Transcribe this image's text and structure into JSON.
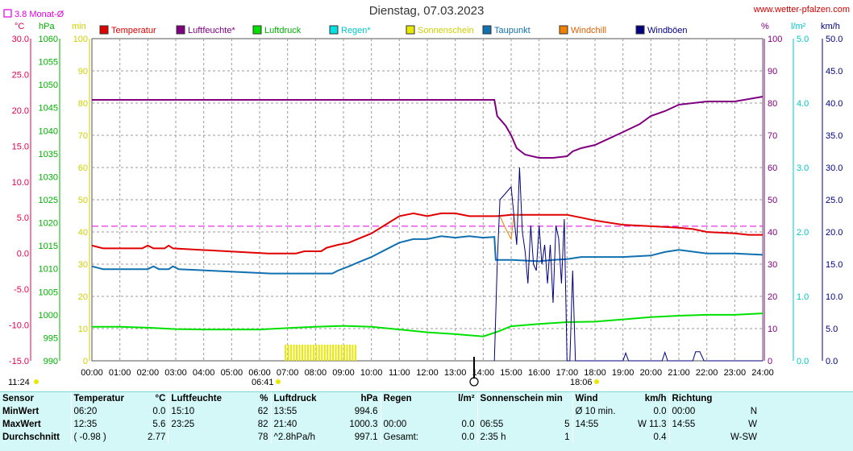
{
  "title": "Dienstag, 07.03.2023",
  "site": "www.wetter-pfalzen.com",
  "monthly_avg_label": "3.8 Monat-Ø",
  "axis_units": {
    "temp": "°C",
    "pressure": "hPa",
    "sunshine": "min",
    "humidity": "%",
    "rain": "l/m²",
    "wind": "km/h"
  },
  "sunrise_label": "06:41",
  "sunset_label": "18:06",
  "update_time": "11:24",
  "colors": {
    "temp": "#e00000",
    "humidity": "#800080",
    "pressure": "#00e000",
    "rain": "#00e0e0",
    "sunshine": "#e8e800",
    "dewpoint": "#1070b0",
    "windchill": "#f08000",
    "gusts": "#000080",
    "monthly_avg": "#e000e0",
    "temp_axis": "#e00050",
    "stats_bg": "#d4f7f7"
  },
  "chart_data": {
    "type": "line",
    "x_ticks": [
      "00:00",
      "01:00",
      "02:00",
      "03:00",
      "04:00",
      "05:00",
      "06:00",
      "07:00",
      "08:00",
      "09:00",
      "10:00",
      "11:00",
      "12:00",
      "13:00",
      "14:00",
      "15:00",
      "16:00",
      "17:00",
      "18:00",
      "19:00",
      "20:00",
      "21:00",
      "22:00",
      "23:00",
      "24:00"
    ],
    "axes": {
      "temp": {
        "range": [
          -15,
          30
        ],
        "ticks": [
          "30.0",
          "25.0",
          "20.0",
          "15.0",
          "10.0",
          "5.0",
          "0.0",
          "-5.0",
          "-10.0",
          "-15.0"
        ]
      },
      "pressure": {
        "range": [
          990,
          1060
        ],
        "ticks": [
          "1060",
          "1055",
          "1050",
          "1045",
          "1040",
          "1035",
          "1030",
          "1025",
          "1020",
          "1015",
          "1010",
          "1005",
          "1000",
          "995",
          "990"
        ]
      },
      "sunshine": {
        "range": [
          0,
          100
        ],
        "ticks": [
          "100",
          "90",
          "80",
          "70",
          "60",
          "50",
          "40",
          "30",
          "20",
          "10",
          "0"
        ]
      },
      "humidity": {
        "range": [
          0,
          100
        ],
        "ticks": [
          "100",
          "90",
          "80",
          "70",
          "60",
          "50",
          "40",
          "30",
          "20",
          "10",
          "0"
        ]
      },
      "rain": {
        "range": [
          0,
          5
        ],
        "ticks": [
          "5.0",
          "4.0",
          "3.0",
          "2.0",
          "1.0",
          "0.0"
        ]
      },
      "wind": {
        "range": [
          0,
          50
        ],
        "ticks": [
          "50.0",
          "45.0",
          "40.0",
          "35.0",
          "30.0",
          "25.0",
          "20.0",
          "15.0",
          "10.0",
          "5.0",
          "0.0"
        ]
      }
    },
    "legend": [
      "Temperatur",
      "Luftfeuchte*",
      "Luftdruck",
      "Regen*",
      "Sonnenschein",
      "Taupunkt",
      "Windchill",
      "Windböen"
    ],
    "monthly_avg_temp": 3.8,
    "series": [
      {
        "name": "Temperatur",
        "axis": "temp",
        "points": [
          [
            0,
            1.1
          ],
          [
            0.4,
            0.7
          ],
          [
            1.8,
            0.7
          ],
          [
            2,
            1.1
          ],
          [
            2.2,
            0.7
          ],
          [
            2.6,
            0.7
          ],
          [
            2.75,
            1.1
          ],
          [
            2.9,
            0.7
          ],
          [
            6.3,
            0.0
          ],
          [
            7.3,
            0.0
          ],
          [
            7.6,
            0.3
          ],
          [
            8.2,
            0.3
          ],
          [
            8.4,
            0.8
          ],
          [
            8.8,
            1.2
          ],
          [
            9.2,
            1.5
          ],
          [
            9.5,
            2.0
          ],
          [
            10,
            2.8
          ],
          [
            10.5,
            4.0
          ],
          [
            11,
            5.2
          ],
          [
            11.5,
            5.6
          ],
          [
            12,
            5.2
          ],
          [
            12.5,
            5.6
          ],
          [
            13,
            5.6
          ],
          [
            13.5,
            5.2
          ],
          [
            14,
            5.2
          ],
          [
            14.5,
            5.2
          ],
          [
            15,
            5.4
          ],
          [
            16,
            5.4
          ],
          [
            17,
            5.4
          ],
          [
            17.5,
            5.0
          ],
          [
            18,
            4.6
          ],
          [
            19,
            4.0
          ],
          [
            20,
            3.8
          ],
          [
            21,
            3.6
          ],
          [
            21.5,
            3.4
          ],
          [
            22,
            3.0
          ],
          [
            23,
            2.8
          ],
          [
            23.5,
            2.6
          ],
          [
            24,
            2.6
          ]
        ]
      },
      {
        "name": "Luftfeuchte*",
        "axis": "humidity",
        "points": [
          [
            0,
            81
          ],
          [
            14.4,
            81
          ],
          [
            14.5,
            76
          ],
          [
            14.8,
            73
          ],
          [
            15.0,
            70
          ],
          [
            15.2,
            66
          ],
          [
            15.5,
            64
          ],
          [
            16,
            63
          ],
          [
            16.5,
            63
          ],
          [
            17,
            63.5
          ],
          [
            17.2,
            65
          ],
          [
            17.5,
            66
          ],
          [
            18,
            67
          ],
          [
            19,
            71
          ],
          [
            19.6,
            73.5
          ],
          [
            20,
            76
          ],
          [
            20.5,
            77.5
          ],
          [
            21,
            79.5
          ],
          [
            22,
            80.5
          ],
          [
            23,
            80.5
          ],
          [
            24,
            82
          ]
        ]
      },
      {
        "name": "Luftdruck",
        "axis": "pressure",
        "points": [
          [
            0,
            997.4
          ],
          [
            1,
            997.4
          ],
          [
            2,
            997.2
          ],
          [
            3,
            996.9
          ],
          [
            4,
            996.8
          ],
          [
            5,
            996.8
          ],
          [
            6,
            996.8
          ],
          [
            7,
            997.1
          ],
          [
            8,
            997.4
          ],
          [
            9,
            997.6
          ],
          [
            10,
            997.4
          ],
          [
            11,
            996.8
          ],
          [
            12,
            996.2
          ],
          [
            13,
            995.8
          ],
          [
            14,
            995.3
          ],
          [
            14.5,
            996.3
          ],
          [
            15,
            997.5
          ],
          [
            16,
            998.0
          ],
          [
            17,
            998.4
          ],
          [
            18,
            998.5
          ],
          [
            19,
            999.0
          ],
          [
            20,
            999.5
          ],
          [
            21,
            999.8
          ],
          [
            22,
            1000.0
          ],
          [
            23,
            1000.0
          ],
          [
            24,
            1000.3
          ]
        ]
      },
      {
        "name": "Taupunkt",
        "axis": "temp",
        "points": [
          [
            0,
            -1.8
          ],
          [
            0.4,
            -2.2
          ],
          [
            2,
            -2.2
          ],
          [
            2.2,
            -1.8
          ],
          [
            2.4,
            -2.2
          ],
          [
            2.75,
            -2.2
          ],
          [
            2.9,
            -1.8
          ],
          [
            3.1,
            -2.2
          ],
          [
            6.4,
            -2.8
          ],
          [
            8.6,
            -2.8
          ],
          [
            8.8,
            -2.4
          ],
          [
            9.2,
            -1.8
          ],
          [
            9.5,
            -1.3
          ],
          [
            10,
            -0.5
          ],
          [
            10.5,
            0.5
          ],
          [
            11,
            1.5
          ],
          [
            11.5,
            2.0
          ],
          [
            12,
            2.0
          ],
          [
            12.5,
            2.4
          ],
          [
            13,
            2.2
          ],
          [
            13.5,
            2.4
          ],
          [
            14,
            2.2
          ],
          [
            14.4,
            2.3
          ],
          [
            14.45,
            -0.9
          ],
          [
            15,
            -0.9
          ],
          [
            16,
            -1.1
          ],
          [
            16.5,
            -0.9
          ],
          [
            17,
            -0.8
          ],
          [
            17.5,
            -0.5
          ],
          [
            18,
            -0.5
          ],
          [
            19,
            -0.5
          ],
          [
            20,
            -0.3
          ],
          [
            20.5,
            0.2
          ],
          [
            21,
            0.5
          ],
          [
            22,
            0.0
          ],
          [
            23,
            0.0
          ],
          [
            24,
            -0.2
          ]
        ]
      }
    ],
    "sunshine_minutes": [
      [
        6.9,
        5
      ],
      [
        7.0,
        5
      ],
      [
        7.1,
        5
      ],
      [
        7.2,
        5
      ],
      [
        7.3,
        5
      ],
      [
        7.4,
        5
      ],
      [
        7.5,
        5
      ],
      [
        7.6,
        5
      ],
      [
        7.7,
        5
      ],
      [
        7.8,
        5
      ],
      [
        7.9,
        5
      ],
      [
        8.0,
        5
      ],
      [
        8.1,
        5
      ],
      [
        8.2,
        5
      ],
      [
        8.3,
        5
      ],
      [
        8.4,
        5
      ],
      [
        8.5,
        5
      ],
      [
        8.6,
        5
      ],
      [
        8.7,
        5
      ],
      [
        8.8,
        5
      ],
      [
        8.9,
        5
      ],
      [
        9.0,
        5
      ],
      [
        9.1,
        5
      ],
      [
        9.2,
        5
      ],
      [
        9.3,
        5
      ],
      [
        9.4,
        5
      ]
    ],
    "gusts": {
      "name": "Windböen",
      "axis": "wind",
      "points": [
        [
          14.4,
          0
        ],
        [
          14.5,
          15
        ],
        [
          14.6,
          25
        ],
        [
          14.8,
          26
        ],
        [
          15,
          27
        ],
        [
          15.2,
          18
        ],
        [
          15.3,
          30
        ],
        [
          15.4,
          20
        ],
        [
          15.5,
          17
        ],
        [
          15.6,
          12
        ],
        [
          15.7,
          21
        ],
        [
          15.8,
          15
        ],
        [
          15.9,
          14
        ],
        [
          16,
          21
        ],
        [
          16.1,
          15
        ],
        [
          16.2,
          18
        ],
        [
          16.3,
          12
        ],
        [
          16.4,
          18
        ],
        [
          16.5,
          9
        ],
        [
          16.6,
          21
        ],
        [
          16.7,
          19
        ],
        [
          16.8,
          12
        ],
        [
          16.9,
          22
        ],
        [
          17,
          0
        ],
        [
          17.1,
          0
        ],
        [
          17.2,
          14
        ],
        [
          17.3,
          0
        ],
        [
          17.5,
          0
        ],
        [
          19,
          0
        ],
        [
          19.1,
          1.2
        ],
        [
          19.2,
          0
        ],
        [
          20.4,
          0
        ],
        [
          20.5,
          1.3
        ],
        [
          20.6,
          0
        ],
        [
          21.5,
          0
        ],
        [
          21.6,
          1.4
        ],
        [
          21.75,
          1.4
        ],
        [
          21.9,
          0
        ],
        [
          24,
          0
        ]
      ]
    },
    "windchill": {
      "name": "Windchill",
      "axis": "temp",
      "points": [
        [
          14.6,
          5.2
        ],
        [
          14.8,
          3.5
        ],
        [
          15,
          2.0
        ],
        [
          15.1,
          5.4
        ],
        [
          15.3,
          5.4
        ]
      ]
    }
  },
  "stats": {
    "headers": {
      "sensor": "Sensor",
      "temp": "Temperatur",
      "temp_unit": "°C",
      "hum": "Luftfeuchte",
      "hum_unit": "%",
      "press": "Luftdruck",
      "press_unit": "hPa",
      "rain": "Regen",
      "rain_unit": "l/m²",
      "sun": "Sonnenschein min",
      "wind": "Wind",
      "wind_unit": "km/h",
      "dir": "Richtung"
    },
    "rows": [
      {
        "label": "MinWert",
        "t_time": "06:20",
        "t_val": "0.0",
        "h_time": "15:10",
        "h_val": "62",
        "p_time": "13:55",
        "p_val": "994.6",
        "r_time": "",
        "r_val": "",
        "s_time": "",
        "s_val": "",
        "w_time": "Ø 10 min.",
        "w_val": "0.0",
        "d_time": "00:00",
        "d_val": "N"
      },
      {
        "label": "MaxWert",
        "t_time": "12:35",
        "t_val": "5.6",
        "h_time": "23:25",
        "h_val": "82",
        "p_time": "21:40",
        "p_val": "1000.3",
        "r_time": "00:00",
        "r_val": "0.0",
        "s_time": "06:55",
        "s_val": "5",
        "w_time": "14:55",
        "w_val": "W 11.3",
        "d_time": "14:55",
        "d_val": "W"
      },
      {
        "label": "Durchschnitt",
        "t_time": "( -0.98 )",
        "t_val": "2.77",
        "h_time": "",
        "h_val": "78",
        "p_time": "^2.8hPa/h",
        "p_val": "997.1",
        "r_time": "Gesamt:",
        "r_val": "0.0",
        "s_time": "2:35 h",
        "s_val": "1",
        "w_time": "",
        "w_val": "0.4",
        "d_time": "",
        "d_val": "W-SW"
      }
    ]
  }
}
